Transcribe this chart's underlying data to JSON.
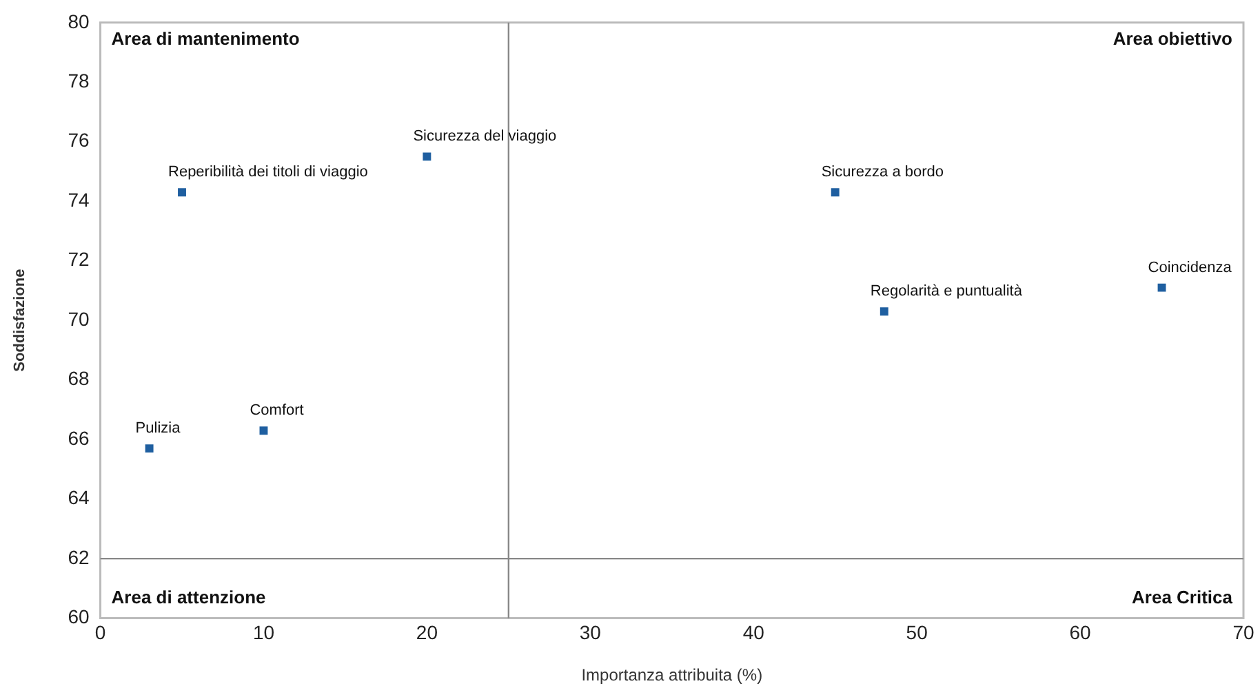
{
  "chart_data": {
    "type": "scatter",
    "xlabel": "Importanza attribuita (%)",
    "ylabel": "Soddisfazione",
    "series": [
      {
        "color": "#1f5fa0",
        "x": [
          3,
          10,
          5,
          20,
          45,
          48,
          65
        ],
        "values": [
          65.7,
          66.3,
          74.3,
          75.5,
          74.3,
          70.3,
          71.1
        ]
      }
    ],
    "xlim": [
      0,
      70
    ],
    "xticks": [
      0,
      10,
      20,
      30,
      40,
      50,
      60,
      70
    ],
    "ylim": [
      60,
      80
    ],
    "yticks": [
      60,
      62,
      64,
      66,
      68,
      70,
      72,
      74,
      76,
      78,
      80
    ],
    "grid": false,
    "legend": false,
    "marker": "square",
    "ref_lines": [
      {
        "axis": "x",
        "value": 25,
        "color": "#888888"
      },
      {
        "axis": "y",
        "value": 62,
        "color": "#888888"
      }
    ],
    "annotations": [
      "Area di mantenimento",
      "Area obiettivo",
      "Area di attenzione",
      "Area Critica",
      {
        "text": "Pulizia",
        "x": 3,
        "y": 65.7
      },
      {
        "text": "Comfort",
        "x": 10,
        "y": 66.3
      },
      {
        "text": "Reperibilità dei titoli di viaggio",
        "x": 5,
        "y": 74.3
      },
      {
        "text": "Sicurezza del viaggio",
        "x": 20,
        "y": 75.5
      },
      {
        "text": "Sicurezza a bordo",
        "x": 45,
        "y": 74.3
      },
      {
        "text": "Regolarità e puntualità",
        "x": 48,
        "y": 70.3
      },
      {
        "text": "Coincidenza",
        "x": 65,
        "y": 71.1
      }
    ]
  }
}
